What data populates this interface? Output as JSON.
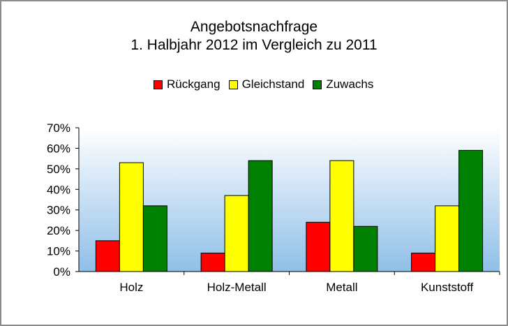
{
  "title_line1": "Angebotsnachfrage",
  "title_line2": "1. Halbjahr 2012 im Vergleich zu 2011",
  "colors": {
    "accent_red": "#ff0000",
    "accent_yellow": "#ffff00",
    "accent_green": "#008000",
    "plot_gradient_top": "#ffffff",
    "plot_gradient_bottom": "#8fbfe8"
  },
  "chart_data": {
    "type": "bar",
    "title": "Angebotsnachfrage\n1. Halbjahr 2012 im Vergleich zu 2011",
    "categories": [
      "Holz",
      "Holz-Metall",
      "Metall",
      "Kunststoff"
    ],
    "series": [
      {
        "name": "Rückgang",
        "color": "#ff0000",
        "values": [
          15,
          9,
          24,
          9
        ]
      },
      {
        "name": "Gleichstand",
        "color": "#ffff00",
        "values": [
          53,
          37,
          54,
          32
        ]
      },
      {
        "name": "Zuwachs",
        "color": "#008000",
        "values": [
          32,
          54,
          22,
          59
        ]
      }
    ],
    "ylim": [
      0,
      70
    ],
    "yticks": [
      "0%",
      "10%",
      "20%",
      "30%",
      "40%",
      "50%",
      "60%",
      "70%"
    ],
    "unit": "%",
    "legend": "top",
    "grid": false
  }
}
